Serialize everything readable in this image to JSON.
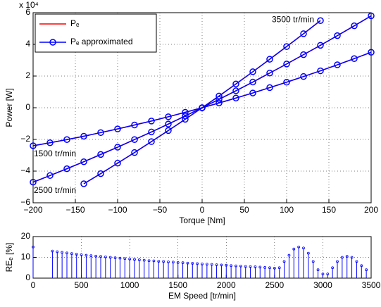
{
  "chart_data": [
    {
      "type": "line",
      "xlabel": "Torque [Nm]",
      "ylabel": "Power [W]",
      "y_scale_label": "x 10⁴",
      "xlim": [
        -200,
        200
      ],
      "ylim": [
        -60000,
        60000
      ],
      "xticks": [
        {
          "value": -200,
          "label": "−200"
        },
        {
          "value": -150,
          "label": "−150"
        },
        {
          "value": -100,
          "label": "−100"
        },
        {
          "value": -50,
          "label": "−50"
        },
        0,
        50,
        100,
        150,
        200
      ],
      "yticks": [
        {
          "value": -60000,
          "label": "−6"
        },
        {
          "value": -40000,
          "label": "−4"
        },
        {
          "value": -20000,
          "label": "−2"
        },
        0,
        {
          "value": 20000,
          "label": "2"
        },
        {
          "value": 40000,
          "label": "4"
        },
        {
          "value": 60000,
          "label": "6"
        }
      ],
      "grid": true,
      "legend": "upper left",
      "curves": [
        {
          "label": "1500 tr/min",
          "x": [
            -200,
            -180,
            -160,
            -140,
            -120,
            -100,
            -80,
            -60,
            -40,
            -20,
            0,
            20,
            40,
            60,
            80,
            100,
            120,
            140,
            160,
            180,
            200
          ]
        },
        {
          "label": "2500 tr/min",
          "x": [
            -200,
            -180,
            -160,
            -140,
            -120,
            -100,
            -80,
            -60,
            -40,
            -20,
            0,
            20,
            40,
            60,
            80,
            100,
            120,
            140,
            160,
            180,
            200
          ]
        },
        {
          "label": "3500 tr/min",
          "x": [
            -140,
            -120,
            -100,
            -80,
            -60,
            -40,
            -20,
            0,
            20,
            40,
            60,
            80,
            100,
            120,
            140
          ]
        }
      ],
      "series": [
        {
          "name": "Pₑ",
          "color": "#ff0000",
          "values": [
            [
              -24000,
              -22100,
              -20100,
              -18000,
              -15700,
              -13400,
              -10900,
              -8400,
              -5700,
              -2900,
              0,
              3000,
              6100,
              9300,
              12700,
              16100,
              19700,
              23300,
              27100,
              31000,
              35000
            ],
            [
              -47000,
              -42800,
              -38500,
              -34100,
              -29500,
              -24900,
              -20100,
              -15300,
              -10300,
              -5200,
              0,
              5300,
              10700,
              16200,
              21900,
              27600,
              33500,
              39400,
              45500,
              51700,
              58000
            ],
            [
              -48000,
              -41600,
              -35000,
              -28300,
              -21400,
              -14400,
              -7300,
              0,
              7400,
              15000,
              22700,
              30600,
              38600,
              46700,
              55000
            ]
          ]
        },
        {
          "name": "Pₑ approximated",
          "color": "#0000ff",
          "marker": "o",
          "values": [
            [
              -24000,
              -22100,
              -20100,
              -18000,
              -15700,
              -13400,
              -10900,
              -8400,
              -5700,
              -2900,
              0,
              3000,
              6100,
              9300,
              12700,
              16100,
              19700,
              23300,
              27100,
              31000,
              35000
            ],
            [
              -47000,
              -42800,
              -38500,
              -34100,
              -29500,
              -24900,
              -20100,
              -15300,
              -10300,
              -5200,
              0,
              5300,
              10700,
              16200,
              21900,
              27600,
              33500,
              39400,
              45500,
              51700,
              58000
            ],
            [
              -48000,
              -41600,
              -35000,
              -28300,
              -21400,
              -14400,
              -7300,
              0,
              7400,
              15000,
              22700,
              30600,
              38600,
              46700,
              55000
            ]
          ]
        }
      ]
    },
    {
      "type": "stem",
      "xlabel": "EM Speed [tr/min]",
      "ylabel": "REₑ [%]",
      "xlim": [
        0,
        3500
      ],
      "ylim": [
        0,
        20
      ],
      "xticks": [
        0,
        500,
        1000,
        1500,
        2000,
        2500,
        3000,
        3500
      ],
      "yticks": [
        0,
        10,
        20
      ],
      "grid": true,
      "color": "#0000ff",
      "x": [
        0,
        200,
        250,
        300,
        350,
        400,
        450,
        500,
        550,
        600,
        650,
        700,
        750,
        800,
        850,
        900,
        950,
        1000,
        1050,
        1100,
        1150,
        1200,
        1250,
        1300,
        1350,
        1400,
        1450,
        1500,
        1550,
        1600,
        1650,
        1700,
        1750,
        1800,
        1850,
        1900,
        1950,
        2000,
        2050,
        2100,
        2150,
        2200,
        2250,
        2300,
        2350,
        2400,
        2450,
        2500,
        2550,
        2600,
        2650,
        2700,
        2750,
        2800,
        2850,
        2900,
        2950,
        3000,
        3050,
        3100,
        3150,
        3200,
        3250,
        3300,
        3350,
        3400,
        3450
      ],
      "values": [
        15,
        13,
        12.7,
        12.4,
        12.1,
        11.8,
        11.5,
        11.2,
        11,
        10.8,
        10.6,
        10.4,
        10.2,
        10,
        9.8,
        9.6,
        9.4,
        9.2,
        9,
        8.8,
        8.6,
        8.4,
        8.3,
        8.1,
        8,
        7.8,
        7.7,
        7.5,
        7.4,
        7.2,
        7.1,
        7,
        6.8,
        6.7,
        6.6,
        6.4,
        6.3,
        6.2,
        6,
        5.9,
        5.8,
        5.6,
        5.5,
        5.4,
        5.3,
        5.1,
        5,
        4.8,
        5,
        8,
        11,
        14,
        15,
        14.5,
        12,
        8,
        4,
        2,
        2,
        5,
        8,
        10,
        10.5,
        10,
        8,
        6,
        4
      ]
    }
  ]
}
